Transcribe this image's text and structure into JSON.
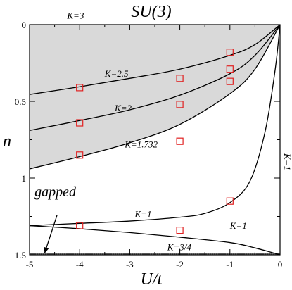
{
  "chart_data": {
    "type": "line",
    "title": "SU(3)",
    "xlabel": "U/t",
    "ylabel": "n",
    "xlim": [
      -5,
      0
    ],
    "ylim": [
      1.5,
      0
    ],
    "y_axis_inverted": true,
    "x_ticks": [
      "-5",
      "-4",
      "-3",
      "-2",
      "-1",
      "0"
    ],
    "x_tick_values": [
      -5,
      -4,
      -3,
      -2,
      -1,
      0
    ],
    "y_ticks": [
      "0",
      "0.5",
      "1",
      "1.5"
    ],
    "y_tick_values": [
      0,
      0.5,
      1,
      1.5
    ],
    "shaded_region": {
      "label": "K=3",
      "color": "#d9d9d9",
      "between": [
        "n=0",
        "K=1.732"
      ]
    },
    "gapped_line": {
      "n": 1.5,
      "label": "K=3/4",
      "color": "#555555"
    },
    "series": [
      {
        "name": "K=2.5",
        "x": [
          -5,
          -4,
          -3,
          -2,
          -1,
          -0.5,
          0
        ],
        "y": [
          0.455,
          0.405,
          0.35,
          0.29,
          0.2,
          0.13,
          0
        ]
      },
      {
        "name": "K=2",
        "x": [
          -5,
          -4,
          -3,
          -2,
          -1,
          -0.5,
          0
        ],
        "y": [
          0.69,
          0.625,
          0.555,
          0.46,
          0.32,
          0.2,
          0
        ]
      },
      {
        "name": "K=1.732",
        "x": [
          -5,
          -4,
          -3,
          -2,
          -1,
          -0.5,
          0
        ],
        "y": [
          0.94,
          0.86,
          0.77,
          0.65,
          0.45,
          0.29,
          0
        ]
      },
      {
        "name": "K=1",
        "x": [
          -5,
          -4,
          -3,
          -2,
          -1.5,
          -1,
          -0.6,
          -0.3,
          -0.1,
          0
        ],
        "y": [
          1.31,
          1.295,
          1.28,
          1.255,
          1.23,
          1.16,
          1.02,
          0.7,
          0.3,
          0
        ]
      },
      {
        "name": "K=1",
        "x": [
          -5,
          -4,
          -3,
          -2,
          -1,
          -0.5,
          0
        ],
        "y": [
          1.31,
          1.33,
          1.355,
          1.385,
          1.42,
          1.455,
          1.5
        ]
      }
    ],
    "markers": {
      "shape": "open-square",
      "color": "#e02020",
      "points": [
        [
          -4,
          0.41
        ],
        [
          -4,
          0.64
        ],
        [
          -4,
          0.85
        ],
        [
          -4,
          1.31
        ],
        [
          -2,
          0.35
        ],
        [
          -2,
          0.52
        ],
        [
          -2,
          0.76
        ],
        [
          -2,
          1.34
        ],
        [
          -1,
          0.18
        ],
        [
          -1,
          0.29
        ],
        [
          -1,
          0.37
        ],
        [
          -1,
          1.15
        ]
      ]
    },
    "annotations": [
      {
        "text": "K=3",
        "x": -4.25,
        "y": -0.04
      },
      {
        "text": "K=2.5",
        "x": -3.5,
        "y": 0.34
      },
      {
        "text": "K=2",
        "x": -3.3,
        "y": 0.565
      },
      {
        "text": "K=1.732",
        "x": -3.1,
        "y": 0.8
      },
      {
        "text": "K=1",
        "x": -2.9,
        "y": 1.255
      },
      {
        "text": "K=1",
        "x": -1.0,
        "y": 1.33
      },
      {
        "text": "K=3/4",
        "x": -2.25,
        "y": 1.47
      },
      {
        "text": "gapped",
        "x": -4.9,
        "y": 1.12
      }
    ],
    "right_label": "K=1",
    "arrow": {
      "from": [
        -4.45,
        1.24
      ],
      "to": [
        -4.7,
        1.49
      ]
    }
  }
}
